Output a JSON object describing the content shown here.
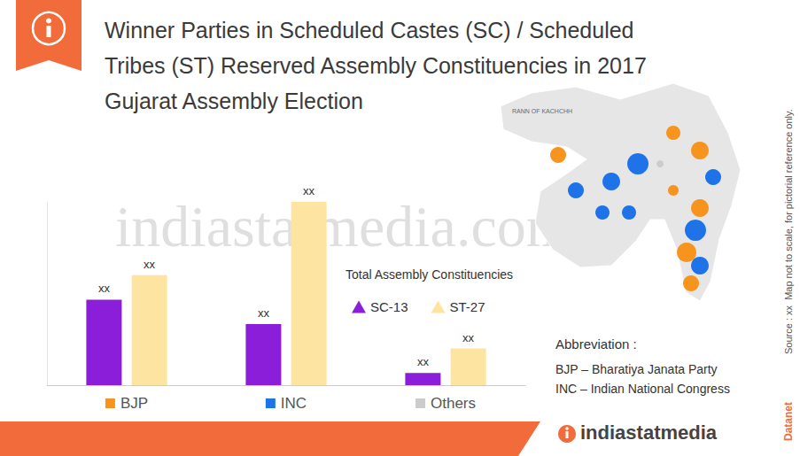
{
  "chart_data": {
    "type": "bar",
    "title": "Winner Parties in Scheduled Castes (SC) / Scheduled\nTribes (ST) Reserved Assembly Constituencies in 2017\nGujarat Assembly Election",
    "categories": [
      "BJP",
      "INC",
      "Others"
    ],
    "series": [
      {
        "name": "SC-13",
        "color": "#8b1ed8",
        "values": [
          7,
          5,
          1
        ],
        "value_labels": [
          "xx",
          "xx",
          "xx"
        ]
      },
      {
        "name": "ST-27",
        "color": "#fde4a0",
        "values": [
          9,
          15,
          3
        ],
        "value_labels": [
          "xx",
          "xx",
          "xx"
        ]
      }
    ],
    "legend_title": "Total Assembly Constituencies",
    "legend": "right",
    "ylim": [
      0,
      15
    ],
    "yticks": [],
    "grid": false,
    "data_labels": true,
    "tick_labels": "x"
  },
  "abbreviation": {
    "title": "Abbreviation :",
    "items": [
      "BJP – Bharatiya Janata Party",
      "INC – Indian National Congress"
    ]
  },
  "map": {
    "label": "RANN OF KACHCHH",
    "party_colors": [
      "#f7941d",
      "#1e73e8",
      "#cccccc"
    ]
  },
  "source": "Source : xx  Map not to scale, for pictorial reference only.",
  "brand": "Datanet",
  "logo": "indiastatmedia",
  "watermark": "indiastatmedia.com"
}
